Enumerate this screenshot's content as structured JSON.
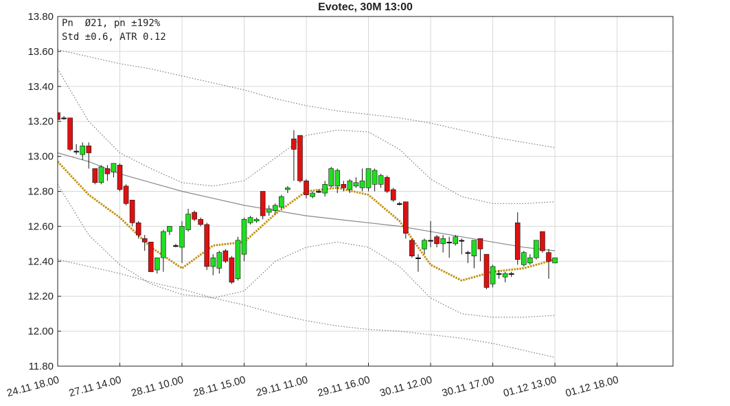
{
  "chart_data": {
    "type": "candlestick",
    "title": "Evotec, 30M 13:00",
    "annotations": [
      "Pn  Ø21, pn ±192%",
      "Std ±0.6, ATR 0.12"
    ],
    "up_color": "#22dd22",
    "down_color": "#dd1111",
    "grid": true,
    "xlim": [
      0,
      99
    ],
    "xticks": [
      {
        "value": 0,
        "label": "24.11 18.00"
      },
      {
        "value": 10,
        "label": "27.11 14.00"
      },
      {
        "value": 20,
        "label": "28.11 10.00"
      },
      {
        "value": 30,
        "label": "28.11 15.00"
      },
      {
        "value": 40,
        "label": "29.11 11.00"
      },
      {
        "value": 50,
        "label": "29.11 16.00"
      },
      {
        "value": 60,
        "label": "30.11 12.00"
      },
      {
        "value": 70,
        "label": "30.11 17.00"
      },
      {
        "value": 80,
        "label": "01.12 13.00"
      },
      {
        "value": 90,
        "label": "01.12 18.00"
      }
    ],
    "ylim": [
      11.8,
      13.8
    ],
    "yticks": [
      {
        "value": 11.8,
        "label": "11.80"
      },
      {
        "value": 12,
        "label": "12.00"
      },
      {
        "value": 12.2,
        "label": "12.20"
      },
      {
        "value": 12.4,
        "label": "12.40"
      },
      {
        "value": 12.6,
        "label": "12.60"
      },
      {
        "value": 12.8,
        "label": "12.80"
      },
      {
        "value": 13,
        "label": "13.00"
      },
      {
        "value": 13.2,
        "label": "13.20"
      },
      {
        "value": 13.4,
        "label": "13.40"
      },
      {
        "value": 13.6,
        "label": "13.60"
      },
      {
        "value": 13.8,
        "label": "13.80"
      }
    ],
    "open": [
      13.25,
      13.22,
      13.22,
      13.03,
      13.01,
      13.06,
      12.93,
      12.85,
      12.93,
      12.91,
      12.95,
      12.83,
      12.75,
      12.62,
      12.53,
      12.51,
      12.35,
      12.42,
      12.57,
      12.49,
      12.48,
      12.58,
      12.68,
      12.64,
      12.61,
      12.37,
      12.36,
      12.46,
      12.42,
      12.3,
      12.44,
      12.62,
      12.63,
      12.8,
      12.68,
      12.69,
      12.71,
      12.81,
      13.1,
      13.12,
      12.86,
      12.77,
      12.8,
      12.79,
      12.83,
      12.83,
      12.84,
      12.81,
      12.83,
      12.82,
      12.82,
      12.84,
      12.84,
      12.88,
      12.81,
      12.73,
      12.74,
      12.52,
      12.42,
      12.47,
      12.52,
      12.54,
      12.5,
      12.51,
      12.5,
      12.52,
      12.45,
      12.43,
      12.53,
      12.44,
      12.27,
      12.33,
      12.31,
      12.33,
      12.62,
      12.38,
      12.39,
      12.42,
      12.57,
      12.45,
      12.39
    ],
    "high": [
      13.26,
      13.23,
      13.22,
      13.07,
      13.08,
      13.08,
      12.93,
      12.95,
      12.95,
      12.96,
      12.96,
      12.84,
      12.75,
      12.63,
      12.55,
      12.51,
      12.42,
      12.58,
      12.6,
      12.5,
      12.63,
      12.7,
      12.69,
      12.65,
      12.62,
      12.44,
      12.46,
      12.47,
      12.43,
      12.54,
      12.65,
      12.66,
      12.65,
      12.8,
      12.72,
      12.73,
      12.78,
      12.83,
      13.15,
      13.12,
      12.87,
      12.8,
      12.81,
      12.86,
      12.94,
      12.93,
      12.86,
      12.87,
      12.88,
      12.93,
      12.93,
      12.93,
      12.9,
      12.89,
      12.82,
      12.74,
      12.74,
      12.53,
      12.44,
      12.53,
      12.63,
      12.55,
      12.55,
      12.54,
      12.55,
      12.53,
      12.46,
      12.52,
      12.53,
      12.44,
      12.38,
      12.35,
      12.34,
      12.34,
      12.68,
      12.46,
      12.44,
      12.52,
      12.57,
      12.47,
      12.42
    ],
    "low": [
      13.2,
      13.21,
      13.03,
      13.01,
      12.98,
      12.93,
      12.84,
      12.84,
      12.86,
      12.88,
      12.8,
      12.72,
      12.6,
      12.53,
      12.46,
      12.34,
      12.33,
      12.34,
      12.55,
      12.48,
      12.39,
      12.57,
      12.63,
      12.6,
      12.35,
      12.32,
      12.33,
      12.39,
      12.27,
      12.29,
      12.4,
      12.61,
      12.62,
      12.64,
      12.66,
      12.67,
      12.7,
      12.79,
      12.86,
      12.85,
      12.76,
      12.76,
      12.79,
      12.77,
      12.82,
      12.79,
      12.8,
      12.79,
      12.82,
      12.8,
      12.8,
      12.8,
      12.82,
      12.79,
      12.74,
      12.72,
      12.53,
      12.42,
      12.34,
      12.44,
      12.48,
      12.48,
      12.45,
      12.42,
      12.49,
      12.44,
      12.39,
      12.36,
      12.4,
      12.24,
      12.25,
      12.3,
      12.28,
      12.31,
      12.38,
      12.37,
      12.38,
      12.41,
      12.45,
      12.3,
      12.39
    ],
    "close": [
      13.21,
      13.22,
      13.04,
      13.03,
      13.06,
      13.02,
      12.85,
      12.94,
      12.9,
      12.96,
      12.81,
      12.73,
      12.62,
      12.55,
      12.51,
      12.34,
      12.42,
      12.57,
      12.6,
      12.49,
      12.6,
      12.67,
      12.64,
      12.61,
      12.37,
      12.42,
      12.45,
      12.4,
      12.28,
      12.52,
      12.64,
      12.65,
      12.64,
      12.66,
      12.7,
      12.72,
      12.77,
      12.82,
      13.04,
      12.86,
      12.78,
      12.79,
      12.8,
      12.84,
      12.93,
      12.92,
      12.82,
      12.86,
      12.85,
      12.86,
      12.93,
      12.92,
      12.89,
      12.8,
      12.75,
      12.73,
      12.56,
      12.43,
      12.42,
      12.52,
      12.52,
      12.5,
      12.53,
      12.51,
      12.54,
      12.52,
      12.45,
      12.52,
      12.47,
      12.25,
      12.37,
      12.33,
      12.33,
      12.33,
      12.41,
      12.45,
      12.42,
      12.52,
      12.46,
      12.4,
      12.42
    ],
    "lines": {
      "x": [
        0,
        5,
        10,
        15,
        20,
        25,
        30,
        35,
        40,
        45,
        50,
        55,
        60,
        65,
        70,
        75,
        80
      ],
      "series": [
        {
          "color": "#888888",
          "style": "solid",
          "values": [
            13.02,
            12.97,
            12.9,
            12.85,
            12.8,
            12.76,
            12.72,
            12.69,
            12.66,
            12.64,
            12.62,
            12.6,
            12.57,
            12.54,
            12.51,
            12.48,
            12.46
          ]
        },
        {
          "color": "#c09010",
          "style": "dotted",
          "values": [
            12.97,
            12.78,
            12.65,
            12.48,
            12.36,
            12.49,
            12.51,
            12.67,
            12.8,
            12.82,
            12.78,
            12.63,
            12.38,
            12.29,
            12.34,
            12.36,
            12.41
          ]
        },
        {
          "color": "#777777",
          "style": "dots",
          "values": [
            13.61,
            13.57,
            13.53,
            13.5,
            13.46,
            13.42,
            13.38,
            13.33,
            13.29,
            13.26,
            13.24,
            13.22,
            13.19,
            13.15,
            13.11,
            13.08,
            13.05
          ]
        },
        {
          "color": "#777777",
          "style": "dots",
          "values": [
            13.5,
            13.2,
            13.02,
            12.93,
            12.85,
            12.83,
            12.86,
            12.99,
            13.12,
            13.15,
            13.14,
            13.04,
            12.87,
            12.77,
            12.73,
            12.73,
            12.74
          ]
        },
        {
          "color": "#777777",
          "style": "dots",
          "values": [
            12.84,
            12.55,
            12.38,
            12.27,
            12.21,
            12.19,
            12.23,
            12.4,
            12.48,
            12.51,
            12.48,
            12.37,
            12.19,
            12.1,
            12.08,
            12.08,
            12.09
          ]
        },
        {
          "color": "#777777",
          "style": "dots",
          "values": [
            12.41,
            12.37,
            12.33,
            12.28,
            12.24,
            12.19,
            12.15,
            12.1,
            12.06,
            12.03,
            12.01,
            12.0,
            11.98,
            11.96,
            11.93,
            11.89,
            11.85
          ]
        }
      ]
    }
  }
}
